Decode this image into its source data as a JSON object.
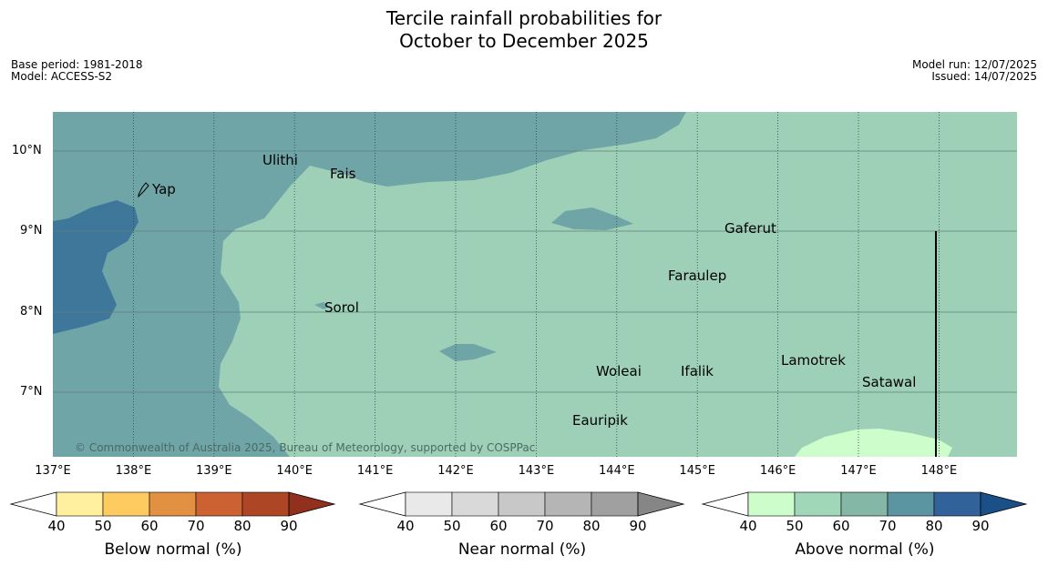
{
  "title_line1": "Tercile rainfall probabilities for",
  "title_line2": "October to December 2025",
  "meta_left": {
    "base_period": "Base period: 1981-2018",
    "model": "Model: ACCESS-S2"
  },
  "meta_right": {
    "model_run": "Model run: 12/07/2025",
    "issued": "Issued: 14/07/2025"
  },
  "copyright": "© Commonwealth of Australia 2025, Bureau of Meteorology, supported by COSPPac",
  "map": {
    "lon_labels": [
      "137°E",
      "138°E",
      "139°E",
      "140°E",
      "141°E",
      "142°E",
      "143°E",
      "144°E",
      "145°E",
      "146°E",
      "147°E",
      "148°E"
    ],
    "lat_labels": [
      "10°N",
      "9°N",
      "8°N",
      "7°N"
    ],
    "places": [
      {
        "name": "Yap"
      },
      {
        "name": "Ulithi"
      },
      {
        "name": "Fais"
      },
      {
        "name": "Gaferut"
      },
      {
        "name": "Faraulep"
      },
      {
        "name": "Sorol"
      },
      {
        "name": "Woleai"
      },
      {
        "name": "Ifalik"
      },
      {
        "name": "Lamotrek"
      },
      {
        "name": "Satawal"
      },
      {
        "name": "Eauripik"
      }
    ],
    "colors": {
      "above_50_60": "#9ed0b8",
      "above_60_70": "#70a5a8",
      "above_70_80": "#3f779a",
      "above_40_50": "#ccfdca"
    }
  },
  "colorbars": [
    {
      "label": "Below normal (%)",
      "ticks": [
        "40",
        "50",
        "60",
        "70",
        "80",
        "90"
      ],
      "colors": [
        "#fff0a0",
        "#fecb61",
        "#e29042",
        "#cc6132",
        "#ac4625",
        "#92301e"
      ]
    },
    {
      "label": "Near normal (%)",
      "ticks": [
        "40",
        "50",
        "60",
        "70",
        "80",
        "90"
      ],
      "colors": [
        "#e9e9e9",
        "#d9d9d9",
        "#c8c8c8",
        "#b5b5b5",
        "#a0a0a0",
        "#868686"
      ]
    },
    {
      "label": "Above normal (%)",
      "ticks": [
        "40",
        "50",
        "60",
        "70",
        "80",
        "90"
      ],
      "colors": [
        "#ccfdca",
        "#a0d7b9",
        "#85b7a6",
        "#5b95a2",
        "#32629a",
        "#1a4f87"
      ]
    }
  ]
}
